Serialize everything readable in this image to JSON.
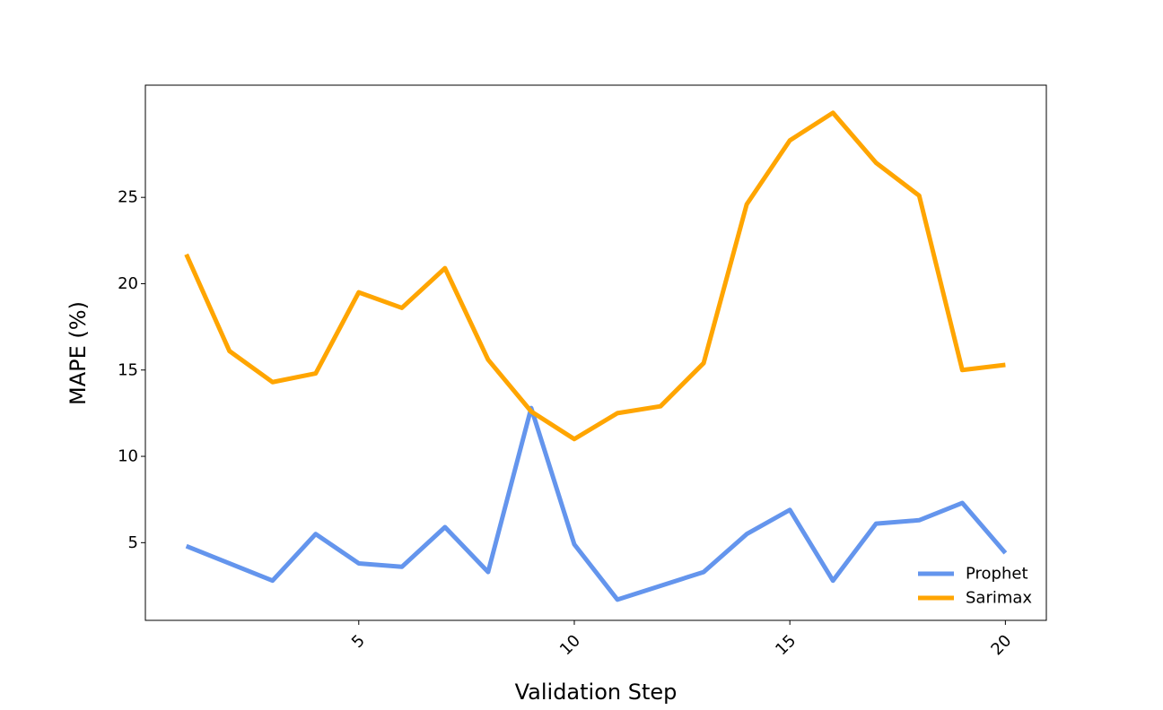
{
  "chart_data": {
    "type": "line",
    "title": "",
    "xlabel": "Validation Step",
    "ylabel": "MAPE (%)",
    "x": [
      1,
      2,
      3,
      4,
      5,
      6,
      7,
      8,
      9,
      10,
      11,
      12,
      13,
      14,
      15,
      16,
      17,
      18,
      19,
      20
    ],
    "xlim": [
      0.05,
      20.95
    ],
    "ylim": [
      0.5,
      31.5
    ],
    "xticks": [
      5,
      10,
      15,
      20
    ],
    "xtick_labels": [
      "5",
      "10",
      "15",
      "20"
    ],
    "yticks": [
      5,
      10,
      15,
      20,
      25
    ],
    "ytick_labels": [
      "5",
      "10",
      "15",
      "20",
      "25"
    ],
    "x_tick_rotation": 45,
    "grid": false,
    "legend_position": "lower-right",
    "series": [
      {
        "name": "Prophet",
        "color": "#6495ED",
        "values": [
          4.8,
          3.8,
          2.8,
          5.5,
          3.8,
          3.6,
          5.9,
          3.3,
          12.8,
          4.9,
          1.7,
          2.5,
          3.3,
          5.5,
          6.9,
          2.8,
          6.1,
          6.3,
          7.3,
          4.4
        ]
      },
      {
        "name": "Sarimax",
        "color": "#FFA500",
        "values": [
          21.7,
          16.1,
          14.3,
          14.8,
          19.5,
          18.6,
          20.9,
          15.6,
          12.6,
          11.0,
          12.5,
          12.9,
          15.4,
          24.6,
          28.3,
          29.9,
          27.0,
          25.1,
          15.0,
          15.3
        ]
      }
    ]
  }
}
